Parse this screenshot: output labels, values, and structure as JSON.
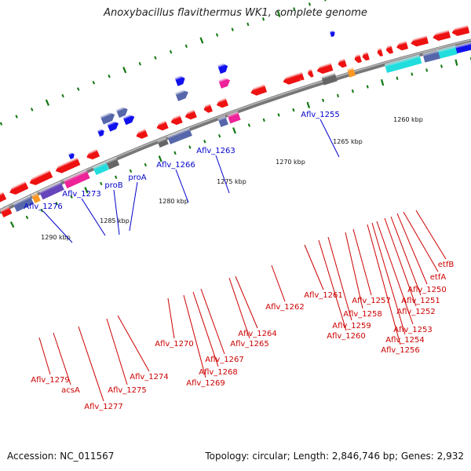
{
  "title": "Anoxybacillus flavithermus WK1, complete genome",
  "footer": {
    "accession": "Accession: NC_011567",
    "summary": "Topology: circular; Length: 2,846,746 bp; Genes: 2,932"
  },
  "colors": {
    "backbone": "#777777",
    "forward_label": "#0000cc",
    "reverse_label": "#cc0000",
    "tick_major": "#117711",
    "gene_red": "#ee1111",
    "gene_blue": "#1111ee",
    "cyan": "#22dddd",
    "magenta": "#ee2299",
    "slate": "#5566aa",
    "purple": "#6644bb",
    "orange": "#ff9922",
    "gray": "#666666"
  },
  "scale_labels": [
    "1260 kbp",
    "1265 kbp",
    "1270 kbp",
    "1275 kbp",
    "1280 kbp",
    "1285 kbp",
    "1290 kbp"
  ],
  "forward_labels": [
    "Aflv_1255",
    "Aflv_1263",
    "Aflv_1266",
    "proA",
    "proB",
    "Aflv_1273",
    "Aflv_1276"
  ],
  "reverse_labels": [
    "etfB",
    "etfA",
    "Aflv_1250",
    "Aflv_1251",
    "Aflv_1252",
    "Aflv_1253",
    "Aflv_1254",
    "Aflv_1256",
    "Aflv_1257",
    "Aflv_1258",
    "Aflv_1259",
    "Aflv_1260",
    "Aflv_1261",
    "Aflv_1262",
    "Aflv_1264",
    "Aflv_1265",
    "Aflv_1267",
    "Aflv_1268",
    "Aflv_1269",
    "Aflv_1270",
    "Aflv_1274",
    "Aflv_1275",
    "Aflv_1277",
    "acsA",
    "Aflv_1279"
  ]
}
